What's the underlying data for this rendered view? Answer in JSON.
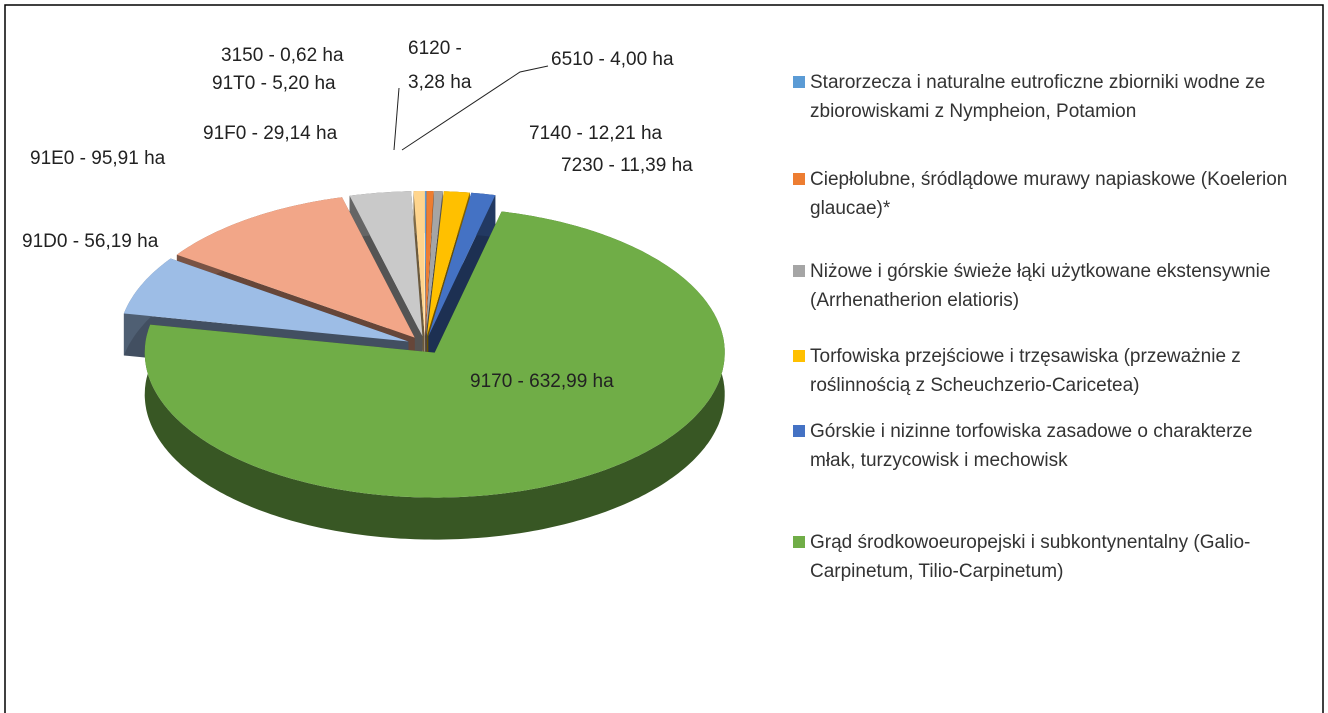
{
  "chart_data": {
    "type": "pie3d",
    "values": [
      0.62,
      3.28,
      4.0,
      12.21,
      11.39,
      632.99,
      56.19,
      95.91,
      29.14,
      5.2
    ],
    "value_labels": [
      "3150 - 0,62 ha",
      "6120 - 3,28 ha",
      "6510 - 4,00 ha",
      "7140 - 12,21 ha",
      "7230 - 11,39 ha",
      "9170 - 632,99 ha",
      "91D0 - 56,19 ha",
      "91E0 - 95,91 ha",
      "91F0 - 29,14 ha",
      "91T0 - 5,20 ha"
    ],
    "colors": [
      "#5b9bd5",
      "#ed7d31",
      "#a5a5a5",
      "#ffc000",
      "#4472c4",
      "#70ad47",
      "#9dbde6",
      "#f2a688",
      "#c9c9c9",
      "#ffd58e"
    ],
    "legend": [
      {
        "name": "Starorzecza i naturalne eutroficzne zbiorniki wodne ze zbiorowiskami z Nympheion, Potamion",
        "color": "#5b9bd5"
      },
      {
        "name": "Ciepłolubne, śródlądowe murawy napiaskowe (Koelerion glaucae)*",
        "color": "#ed7d31"
      },
      {
        "name": "Niżowe i górskie świeże łąki użytkowane ekstensywnie (Arrhenatherion elatioris)",
        "color": "#a5a5a5"
      },
      {
        "name": "Torfowiska przejściowe i trzęsawiska (przeważnie z roślinnością z Scheuchzerio-Caricetea)",
        "color": "#ffc000"
      },
      {
        "name": "Górskie i nizinne torfowiska zasadowe o charakterze młak, turzycowisk i mechowisk",
        "color": "#4472c4"
      },
      {
        "name": "Grąd środkowoeuropejski i subkontynentalny (Galio-Carpinetum, Tilio-Carpinetum)",
        "color": "#70ad47"
      }
    ]
  }
}
